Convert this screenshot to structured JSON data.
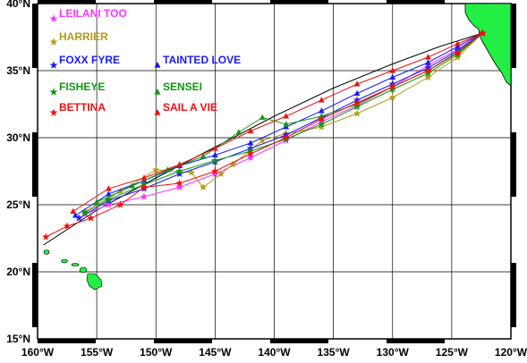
{
  "map": {
    "lat_labels": [
      "40°N",
      "35°N",
      "30°N",
      "25°N",
      "20°N",
      "15°N"
    ],
    "lon_labels": [
      "160°W",
      "155°W",
      "150°W",
      "145°W",
      "140°W",
      "135°W",
      "130°W",
      "125°W",
      "120°W"
    ],
    "lon_range": [
      -160,
      -120
    ],
    "lat_range": [
      15,
      40
    ],
    "land_color": "#22ee44",
    "grid": true
  },
  "legend": [
    {
      "name": "LEILANI TOO",
      "color": "#ff33ff",
      "marker": "star"
    },
    {
      "name": "HARRIER",
      "color": "#b39a1a",
      "marker": "star"
    },
    {
      "name": "FOXX FYRE",
      "color": "#1a1aff",
      "marker": "star"
    },
    {
      "name": "TAINTED LOVE",
      "color": "#1a1aff",
      "marker": "triangle"
    },
    {
      "name": "FISHEYE",
      "color": "#119911",
      "marker": "star"
    },
    {
      "name": "SENSEI",
      "color": "#119911",
      "marker": "triangle"
    },
    {
      "name": "BETTINA",
      "color": "#ee1111",
      "marker": "star"
    },
    {
      "name": "SAIL A VIE",
      "color": "#ee1111",
      "marker": "triangle"
    }
  ],
  "tracks": [
    {
      "boat": "LEILANI TOO",
      "color": "#ff33ff",
      "marker": "star",
      "points": [
        [
          -122.4,
          37.8
        ],
        [
          -124.5,
          36.6
        ],
        [
          -127,
          35.4
        ],
        [
          -130,
          33.8
        ],
        [
          -133,
          32.4
        ],
        [
          -136,
          31.2
        ],
        [
          -139,
          29.8
        ],
        [
          -142,
          28.5
        ],
        [
          -145,
          27.3
        ],
        [
          -148,
          26.3
        ],
        [
          -151,
          25.6
        ],
        [
          -154,
          25.0
        ],
        [
          -156,
          24.3
        ]
      ]
    },
    {
      "boat": "HARRIER",
      "color": "#b39a1a",
      "marker": "star",
      "points": [
        [
          -122.4,
          37.8
        ],
        [
          -124.5,
          36.0
        ],
        [
          -127,
          34.5
        ],
        [
          -130,
          33.0
        ],
        [
          -133,
          31.8
        ],
        [
          -136,
          30.8
        ],
        [
          -139,
          30.3
        ],
        [
          -141,
          29.8
        ],
        [
          -143.5,
          28.0
        ],
        [
          -144.5,
          27.3
        ],
        [
          -146,
          26.3
        ],
        [
          -147,
          27.4
        ],
        [
          -150,
          27.6
        ],
        [
          -153,
          26.0
        ],
        [
          -156,
          24.5
        ]
      ]
    },
    {
      "boat": "FOXX FYRE",
      "color": "#1a1aff",
      "marker": "star",
      "points": [
        [
          -122.4,
          37.8
        ],
        [
          -124.5,
          36.5
        ],
        [
          -127,
          35.2
        ],
        [
          -130,
          34.0
        ],
        [
          -133,
          32.8
        ],
        [
          -136,
          31.5
        ],
        [
          -139,
          30.2
        ],
        [
          -142,
          29.2
        ],
        [
          -145,
          28.2
        ],
        [
          -148,
          27.3
        ],
        [
          -151,
          26.2
        ],
        [
          -154,
          25.3
        ],
        [
          -156.5,
          24.0
        ]
      ]
    },
    {
      "boat": "TAINTED LOVE",
      "color": "#1a1aff",
      "marker": "triangle",
      "points": [
        [
          -122.4,
          37.8
        ],
        [
          -124.5,
          36.8
        ],
        [
          -127,
          35.6
        ],
        [
          -130,
          34.5
        ],
        [
          -133,
          33.3
        ],
        [
          -136,
          32.0
        ],
        [
          -139,
          30.8
        ],
        [
          -142,
          29.6
        ],
        [
          -145,
          28.7
        ],
        [
          -148,
          27.9
        ],
        [
          -151,
          26.8
        ],
        [
          -154,
          25.8
        ],
        [
          -156.8,
          24.2
        ]
      ]
    },
    {
      "boat": "FISHEYE",
      "color": "#119911",
      "marker": "star",
      "points": [
        [
          -122.4,
          37.8
        ],
        [
          -124.5,
          36.2
        ],
        [
          -127,
          34.8
        ],
        [
          -130,
          33.6
        ],
        [
          -133,
          32.3
        ],
        [
          -136,
          31.0
        ],
        [
          -139,
          29.9
        ],
        [
          -142,
          29.0
        ],
        [
          -145,
          28.3
        ],
        [
          -148,
          27.5
        ],
        [
          -151,
          26.5
        ],
        [
          -154,
          25.4
        ],
        [
          -156,
          24.4
        ]
      ]
    },
    {
      "boat": "SENSEI",
      "color": "#119911",
      "marker": "triangle",
      "points": [
        [
          -122.4,
          37.8
        ],
        [
          -124.5,
          36.4
        ],
        [
          -127,
          35.0
        ],
        [
          -130,
          33.8
        ],
        [
          -133,
          32.5
        ],
        [
          -136,
          31.6
        ],
        [
          -139,
          31.0
        ],
        [
          -141,
          31.5
        ],
        [
          -143,
          30.4
        ],
        [
          -146,
          28.6
        ],
        [
          -149,
          27.6
        ],
        [
          -152,
          26.4
        ],
        [
          -155,
          25.2
        ]
      ]
    },
    {
      "boat": "BETTINA",
      "color": "#ee1111",
      "marker": "star",
      "points": [
        [
          -122.4,
          37.8
        ],
        [
          -124.5,
          36.3
        ],
        [
          -127,
          35.0
        ],
        [
          -130,
          33.8
        ],
        [
          -133,
          32.6
        ],
        [
          -136,
          31.4
        ],
        [
          -139,
          30.0
        ],
        [
          -142,
          28.8
        ],
        [
          -145,
          27.5
        ],
        [
          -148,
          26.6
        ],
        [
          -151,
          26.3
        ],
        [
          -153,
          25.0
        ],
        [
          -155.5,
          24.0
        ],
        [
          -157.5,
          23.4
        ],
        [
          -159.3,
          22.6
        ]
      ]
    },
    {
      "boat": "SAIL A VIE",
      "color": "#ee1111",
      "marker": "triangle",
      "points": [
        [
          -122.4,
          37.8
        ],
        [
          -124.5,
          37.0
        ],
        [
          -127,
          36.0
        ],
        [
          -130,
          35.0
        ],
        [
          -133,
          34.0
        ],
        [
          -136,
          32.8
        ],
        [
          -139,
          31.6
        ],
        [
          -142,
          30.5
        ],
        [
          -145,
          29.2
        ],
        [
          -148,
          28.0
        ],
        [
          -151,
          27.0
        ],
        [
          -154,
          26.2
        ],
        [
          -157,
          24.5
        ]
      ]
    }
  ],
  "great_circle": [
    [
      -122.4,
      37.8
    ],
    [
      -126,
      36.8
    ],
    [
      -130,
      35.5
    ],
    [
      -135,
      33.7
    ],
    [
      -140,
      31.6
    ],
    [
      -145,
      29.3
    ],
    [
      -150,
      27.0
    ],
    [
      -155,
      24.6
    ],
    [
      -159.5,
      22.0
    ]
  ]
}
